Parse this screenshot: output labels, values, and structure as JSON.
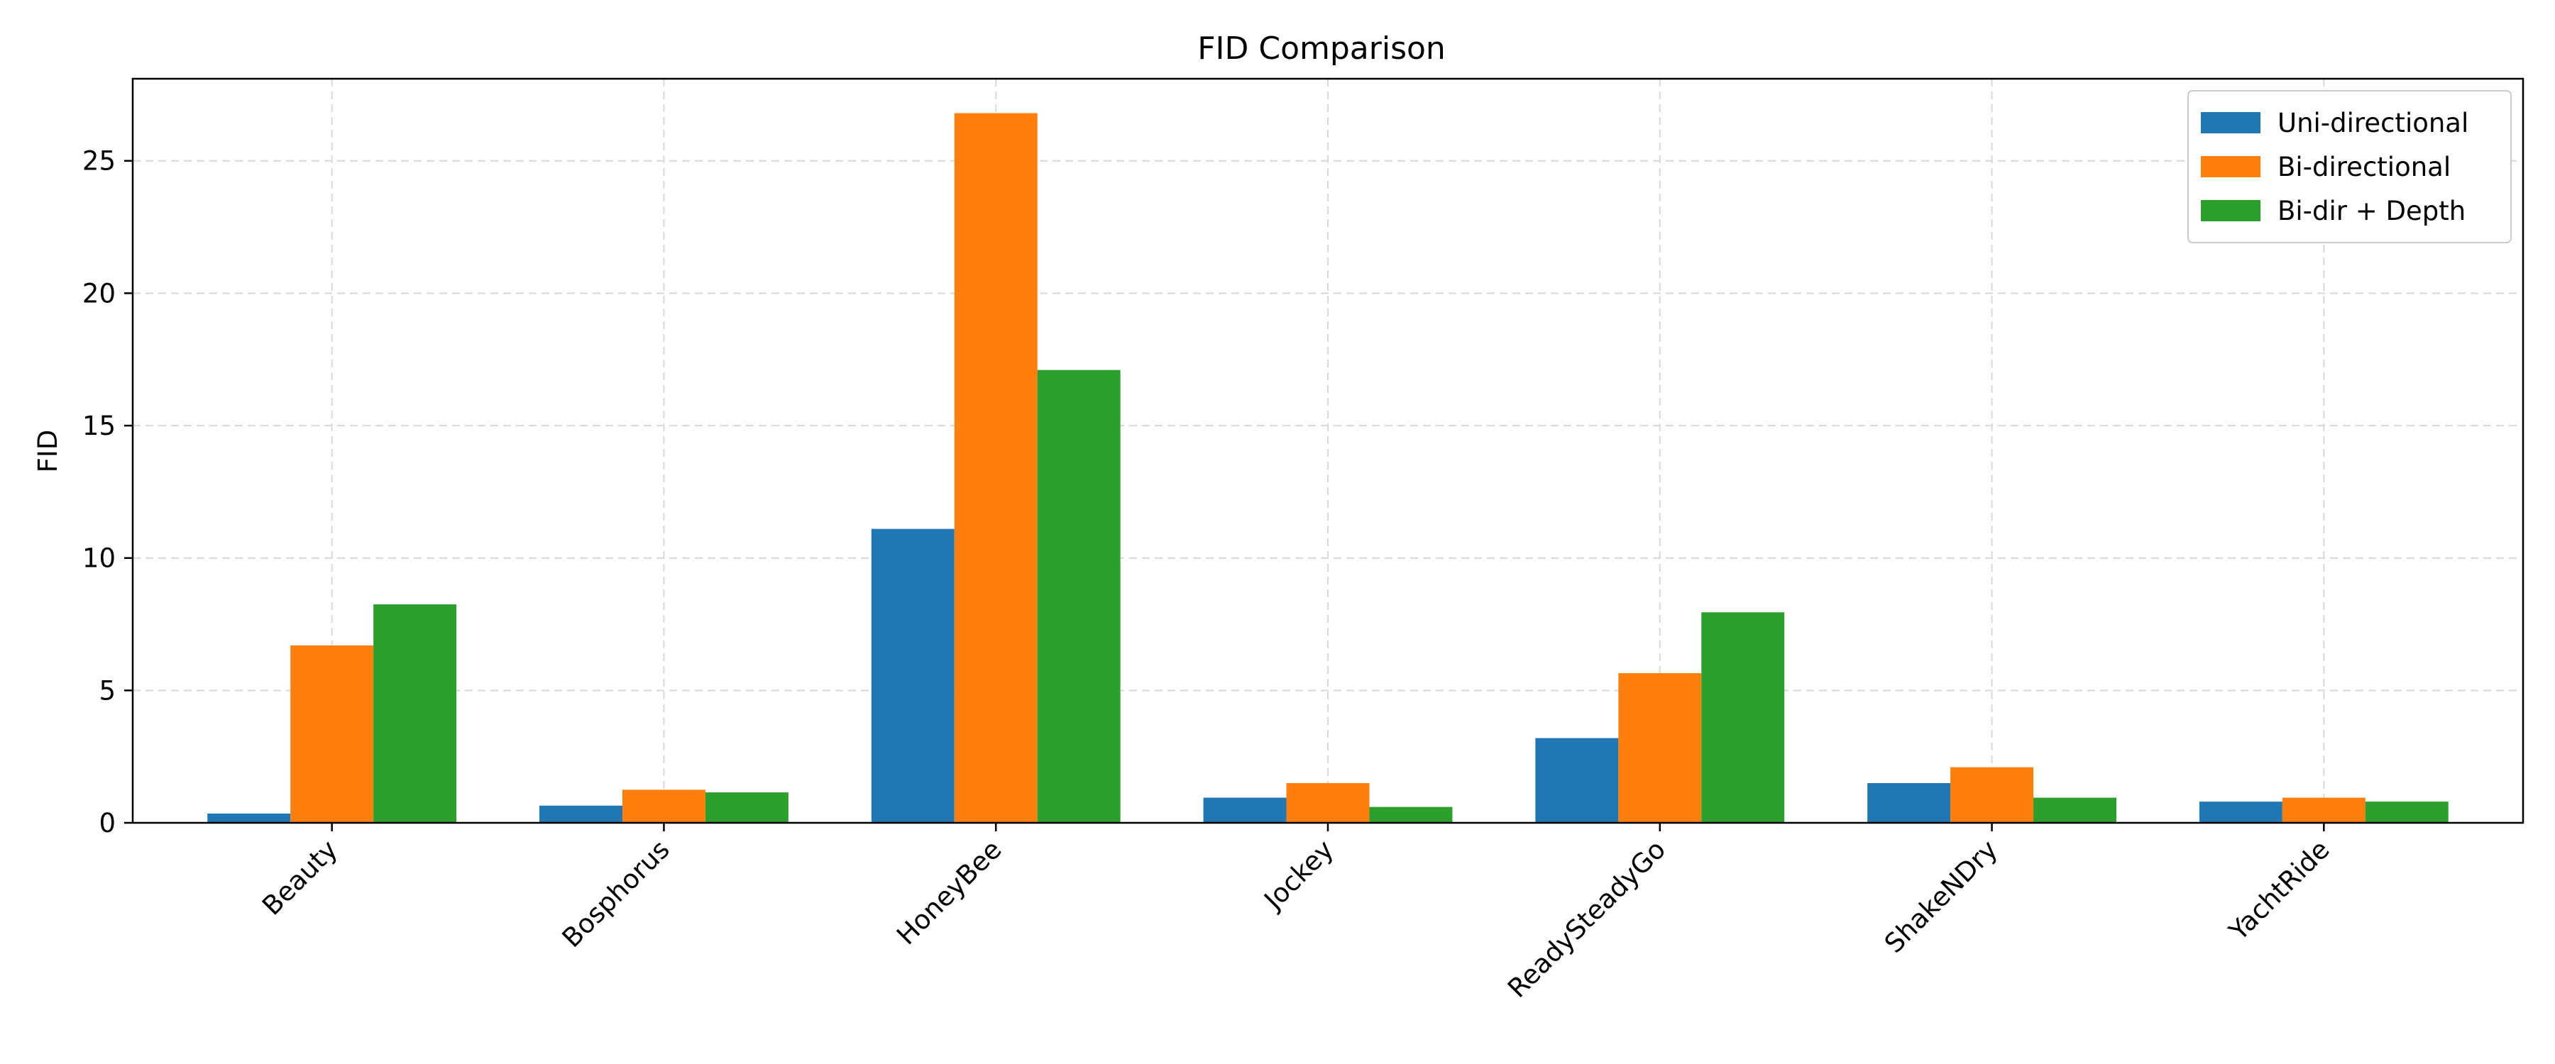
{
  "chart_data": {
    "type": "bar",
    "title": "FID Comparison",
    "xlabel": "",
    "ylabel": "FID",
    "categories": [
      "Beauty",
      "Bosphorus",
      "HoneyBee",
      "Jockey",
      "ReadySteadyGo",
      "ShakeNDry",
      "YachtRide"
    ],
    "series": [
      {
        "name": "Uni-directional",
        "color": "#1f77b4",
        "values": [
          0.35,
          0.65,
          11.1,
          0.95,
          3.2,
          1.5,
          0.8
        ]
      },
      {
        "name": "Bi-directional",
        "color": "#ff7f0e",
        "values": [
          6.7,
          1.25,
          26.8,
          1.5,
          5.65,
          2.1,
          0.95
        ]
      },
      {
        "name": "Bi-dir + Depth",
        "color": "#2ca02c",
        "values": [
          8.25,
          1.15,
          17.1,
          0.6,
          7.95,
          0.95,
          0.8
        ]
      }
    ],
    "ylim": [
      0,
      28.1
    ],
    "yticks": [
      0,
      5,
      10,
      15,
      20,
      25
    ],
    "grid": true,
    "legend_position": "top-right"
  }
}
